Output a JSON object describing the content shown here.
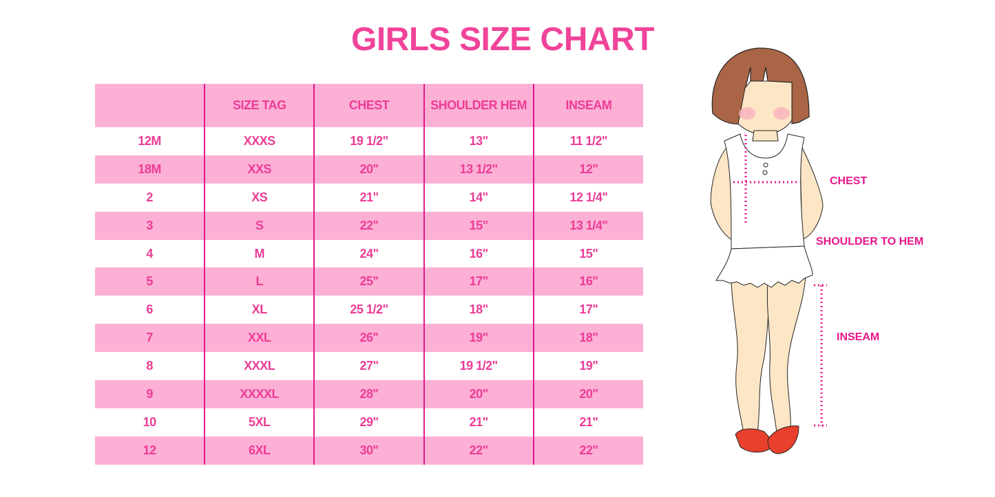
{
  "title": "GIRLS SIZE CHART",
  "table": {
    "headers": [
      "",
      "SIZE TAG",
      "CHEST",
      "SHOULDER HEM",
      "INSEAM"
    ],
    "rows": [
      [
        "12M",
        "XXXS",
        "19 1/2\"",
        "13\"",
        "11 1/2\""
      ],
      [
        "18M",
        "XXS",
        "20\"",
        "13 1/2\"",
        "12\""
      ],
      [
        "2",
        "XS",
        "21\"",
        "14\"",
        "12 1/4\""
      ],
      [
        "3",
        "S",
        "22\"",
        "15\"",
        "13 1/4\""
      ],
      [
        "4",
        "M",
        "24\"",
        "16\"",
        "15\""
      ],
      [
        "5",
        "L",
        "25\"",
        "17\"",
        "16\""
      ],
      [
        "6",
        "XL",
        "25 1/2\"",
        "18\"",
        "17\""
      ],
      [
        "7",
        "XXL",
        "26\"",
        "19\"",
        "18\""
      ],
      [
        "8",
        "XXXL",
        "27\"",
        "19 1/2\"",
        "19\""
      ],
      [
        "9",
        "XXXXL",
        "28\"",
        "20\"",
        "20\""
      ],
      [
        "10",
        "5XL",
        "29\"",
        "21\"",
        "21\""
      ],
      [
        "12",
        "6XL",
        "30\"",
        "22\"",
        "22\""
      ]
    ]
  },
  "illustration": {
    "chest_label": "CHEST",
    "shoulder_label": "SHOULDER TO HEM",
    "inseam_label": "INSEAM"
  },
  "colors": {
    "accent": "#ec3c96",
    "row_pink": "#fcb0d5",
    "divider": "#e2188c"
  }
}
